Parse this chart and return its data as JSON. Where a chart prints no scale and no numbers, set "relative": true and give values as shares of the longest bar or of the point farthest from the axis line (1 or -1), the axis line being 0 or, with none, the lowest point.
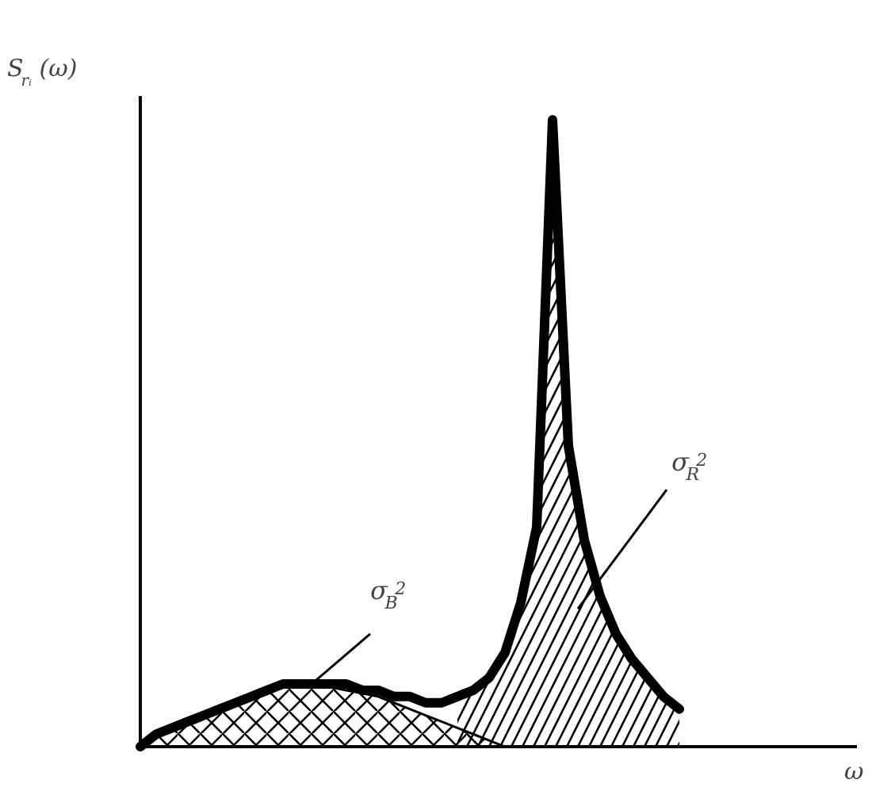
{
  "chart_data": {
    "type": "line",
    "relative": true,
    "ylabel": "S$_{rᵢ}$(ω)",
    "categories": [
      null,
      null,
      null,
      null,
      null,
      null,
      null,
      null,
      null,
      null,
      null,
      null,
      null,
      null,
      null,
      null,
      null,
      null,
      null,
      null,
      null,
      null,
      null,
      null,
      null,
      null,
      null,
      null,
      null,
      null,
      null,
      null,
      null,
      null,
      null
    ],
    "series": [
      {
        "type": "area",
        "color": "#000000",
        "values": [
          0,
          0.02,
          0.03,
          0.04,
          0.05,
          0.06,
          0.07,
          0.08,
          0.09,
          0.095,
          0.1,
          0.1,
          0.095,
          0.09,
          0.085,
          0.08,
          0.07,
          0.06,
          0.05,
          0.04,
          0.03,
          0.02,
          0.01,
          0,
          null,
          null,
          null,
          null,
          null,
          null,
          null,
          null,
          null,
          null,
          null
        ]
      },
      {
        "type": "area",
        "color": "#000000",
        "values": [
          null,
          null,
          null,
          null,
          null,
          null,
          null,
          null,
          null,
          null,
          null,
          null,
          null,
          null,
          null,
          null,
          null,
          null,
          null,
          null,
          0.08,
          0.09,
          0.11,
          0.15,
          0.23,
          0.35,
          1.0,
          0.48,
          0.33,
          0.24,
          0.18,
          0.14,
          0.11,
          0.08,
          0.06
        ]
      },
      {
        "color": "#000000",
        "values": [
          0,
          0.02,
          0.03,
          0.04,
          0.05,
          0.06,
          0.07,
          0.08,
          0.09,
          0.1,
          0.1,
          0.1,
          0.1,
          0.1,
          0.09,
          0.09,
          0.08,
          0.08,
          0.07,
          0.07,
          0.08,
          0.09,
          0.11,
          0.15,
          0.23,
          0.35,
          1.0,
          0.48,
          0.33,
          0.24,
          0.18,
          0.14,
          0.11,
          0.08,
          0.06
        ]
      }
    ],
    "annotations": [
      "σ$_{B}$$^{2}$",
      "σ$_{R}$$^{2}$",
      "ω"
    ],
    "grid": false
  }
}
